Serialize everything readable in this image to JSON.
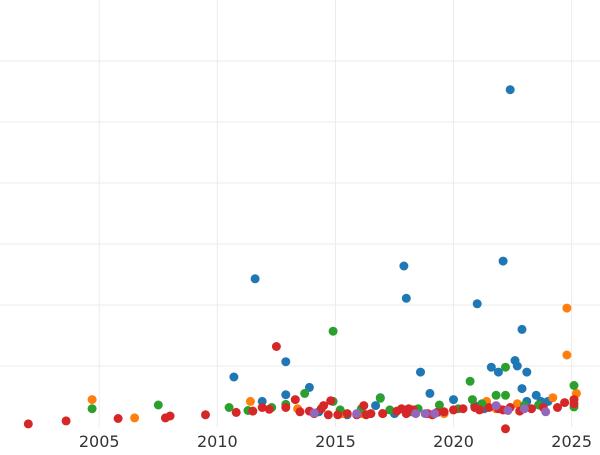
{
  "chart_data": {
    "type": "scatter",
    "title": "",
    "xlabel": "",
    "ylabel": "",
    "xlim": [
      2000.8,
      2026.2
    ],
    "ylim": [
      0,
      7
    ],
    "grid": true,
    "legend": "none",
    "x_ticks": [
      {
        "value": 2005,
        "label": "2005"
      },
      {
        "value": 2010,
        "label": "2010"
      },
      {
        "value": 2015,
        "label": "2015"
      },
      {
        "value": 2020,
        "label": "2020"
      },
      {
        "value": 2025,
        "label": "2025"
      }
    ],
    "y_gridlines": [
      1,
      2,
      3,
      4,
      5,
      6
    ],
    "series": [
      {
        "color": "#1f77b4",
        "points": [
          [
            2010.7,
            0.82
          ],
          [
            2011.6,
            2.43
          ],
          [
            2011.9,
            0.42
          ],
          [
            2012.9,
            1.07
          ],
          [
            2012.9,
            0.53
          ],
          [
            2013.9,
            0.65
          ],
          [
            2014.3,
            0.25
          ],
          [
            2016.7,
            0.35
          ],
          [
            2016.9,
            0.48
          ],
          [
            2017.9,
            2.64
          ],
          [
            2018.0,
            2.11
          ],
          [
            2018.6,
            0.9
          ],
          [
            2019.0,
            0.55
          ],
          [
            2020.0,
            0.45
          ],
          [
            2021.0,
            2.02
          ],
          [
            2021.6,
            0.98
          ],
          [
            2021.9,
            0.9
          ],
          [
            2022.1,
            2.72
          ],
          [
            2022.4,
            5.53
          ],
          [
            2022.6,
            1.09
          ],
          [
            2022.7,
            1.0
          ],
          [
            2022.9,
            1.6
          ],
          [
            2022.9,
            0.63
          ],
          [
            2023.1,
            0.9
          ],
          [
            2023.1,
            0.42
          ],
          [
            2023.5,
            0.52
          ],
          [
            2023.7,
            0.42
          ],
          [
            2024.0,
            0.42
          ],
          [
            2020.9,
            0.35
          ],
          [
            2021.3,
            0.3
          ],
          [
            2019.4,
            0.25
          ],
          [
            2017.5,
            0.22
          ],
          [
            2015.5,
            0.2
          ]
        ]
      },
      {
        "color": "#ff7f0e",
        "points": [
          [
            2004.7,
            0.45
          ],
          [
            2006.5,
            0.15
          ],
          [
            2011.4,
            0.42
          ],
          [
            2015.3,
            0.22
          ],
          [
            2017.0,
            0.22
          ],
          [
            2019.6,
            0.22
          ],
          [
            2021.4,
            0.42
          ],
          [
            2021.8,
            0.3
          ],
          [
            2022.7,
            0.38
          ],
          [
            2024.2,
            0.48
          ],
          [
            2024.8,
            1.95
          ],
          [
            2024.8,
            1.18
          ],
          [
            2025.2,
            0.55
          ],
          [
            2016.1,
            0.22
          ],
          [
            2013.4,
            0.3
          ]
        ]
      },
      {
        "color": "#2ca02c",
        "points": [
          [
            2004.7,
            0.3
          ],
          [
            2007.5,
            0.36
          ],
          [
            2010.5,
            0.32
          ],
          [
            2011.3,
            0.27
          ],
          [
            2012.3,
            0.32
          ],
          [
            2012.9,
            0.37
          ],
          [
            2013.7,
            0.55
          ],
          [
            2014.9,
            1.57
          ],
          [
            2015.2,
            0.28
          ],
          [
            2016.1,
            0.3
          ],
          [
            2016.9,
            0.47
          ],
          [
            2017.3,
            0.28
          ],
          [
            2018.2,
            0.25
          ],
          [
            2019.4,
            0.36
          ],
          [
            2020.2,
            0.3
          ],
          [
            2020.7,
            0.75
          ],
          [
            2020.8,
            0.45
          ],
          [
            2021.2,
            0.38
          ],
          [
            2021.8,
            0.52
          ],
          [
            2022.2,
            0.52
          ],
          [
            2022.2,
            0.98
          ],
          [
            2023.0,
            0.35
          ],
          [
            2023.6,
            0.36
          ],
          [
            2025.1,
            0.68
          ],
          [
            2025.1,
            0.33
          ],
          [
            2014.9,
            0.42
          ],
          [
            2018.5,
            0.3
          ]
        ]
      },
      {
        "color": "#d62728",
        "points": [
          [
            2002.0,
            0.05
          ],
          [
            2003.6,
            0.1
          ],
          [
            2005.8,
            0.14
          ],
          [
            2007.8,
            0.15
          ],
          [
            2008.0,
            0.18
          ],
          [
            2009.5,
            0.2
          ],
          [
            2010.8,
            0.24
          ],
          [
            2011.5,
            0.26
          ],
          [
            2011.9,
            0.32
          ],
          [
            2012.2,
            0.29
          ],
          [
            2012.5,
            1.32
          ],
          [
            2012.9,
            0.32
          ],
          [
            2013.3,
            0.45
          ],
          [
            2013.5,
            0.25
          ],
          [
            2013.9,
            0.26
          ],
          [
            2014.1,
            0.22
          ],
          [
            2014.4,
            0.3
          ],
          [
            2014.7,
            0.2
          ],
          [
            2014.8,
            0.43
          ],
          [
            2015.1,
            0.2
          ],
          [
            2015.5,
            0.22
          ],
          [
            2015.9,
            0.2
          ],
          [
            2016.2,
            0.35
          ],
          [
            2016.5,
            0.22
          ],
          [
            2017.0,
            0.22
          ],
          [
            2017.6,
            0.26
          ],
          [
            2017.8,
            0.3
          ],
          [
            2018.1,
            0.3
          ],
          [
            2018.3,
            0.28
          ],
          [
            2018.9,
            0.22
          ],
          [
            2019.3,
            0.24
          ],
          [
            2019.6,
            0.25
          ],
          [
            2020.0,
            0.28
          ],
          [
            2020.4,
            0.3
          ],
          [
            2020.9,
            0.32
          ],
          [
            2021.1,
            0.28
          ],
          [
            2021.5,
            0.32
          ],
          [
            2021.9,
            0.3
          ],
          [
            2022.1,
            0.28
          ],
          [
            2022.2,
            -0.03
          ],
          [
            2022.4,
            0.32
          ],
          [
            2022.8,
            0.26
          ],
          [
            2023.3,
            0.3
          ],
          [
            2023.8,
            0.32
          ],
          [
            2024.4,
            0.32
          ],
          [
            2024.7,
            0.4
          ],
          [
            2025.1,
            0.45
          ],
          [
            2025.1,
            0.38
          ],
          [
            2016.3,
            0.2
          ],
          [
            2019.1,
            0.2
          ],
          [
            2014.5,
            0.35
          ],
          [
            2018.0,
            0.22
          ]
        ]
      },
      {
        "color": "#9467bd",
        "points": [
          [
            2014.1,
            0.23
          ],
          [
            2015.9,
            0.22
          ],
          [
            2018.4,
            0.22
          ],
          [
            2018.8,
            0.22
          ],
          [
            2021.8,
            0.35
          ],
          [
            2022.3,
            0.27
          ],
          [
            2023.0,
            0.3
          ],
          [
            2023.9,
            0.25
          ],
          [
            2019.2,
            0.22
          ]
        ]
      }
    ]
  }
}
